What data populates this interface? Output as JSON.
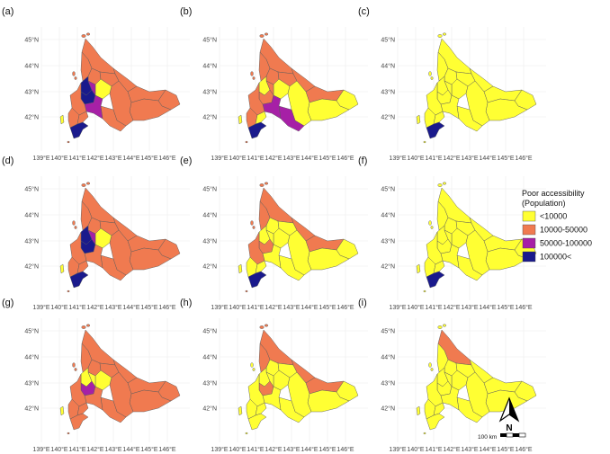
{
  "map": {
    "x_ticks": [
      "139°E",
      "140°E",
      "141°E",
      "142°E",
      "143°E",
      "144°E",
      "145°E",
      "146°E"
    ],
    "y_ticks": [
      "45°N",
      "44°N",
      "43°N",
      "42°N"
    ],
    "panels": [
      {
        "label": "(a)",
        "fills": {
          "north": "c2",
          "rumoi": "c2",
          "sorachi_n": "c2",
          "kamikawa_n": "c2",
          "kamikawa_c": "c1",
          "okhotsk_w": "c2",
          "okhotsk_e": "c2",
          "kushiro": "c2",
          "nemuro": "c2",
          "tokachi": "c2",
          "hidaka": "c2",
          "ishikari": "c4",
          "sapporo": "c4",
          "sorachi_s": "c3",
          "iburi": "c3",
          "shiribeshi": "c2",
          "hiyama": "c2",
          "hakodate": "c4",
          "oshima_n": "c2",
          "okushiri": "c1"
        }
      },
      {
        "label": "(b)",
        "fills": {
          "north": "c2",
          "rumoi": "c2",
          "sorachi_n": "c2",
          "kamikawa_n": "c2",
          "kamikawa_c": "c1",
          "okhotsk_w": "c2",
          "okhotsk_e": "c2",
          "kushiro": "c1",
          "nemuro": "c1",
          "tokachi": "c1",
          "hidaka": "c3",
          "ishikari": "c1",
          "sapporo": "c2",
          "sorachi_s": "c2",
          "iburi": "c3",
          "shiribeshi": "c2",
          "hiyama": "c2",
          "hakodate": "c4",
          "oshima_n": "c1",
          "okushiri": "c1"
        }
      },
      {
        "label": "(c)",
        "fills": {
          "north": "c1",
          "rumoi": "c1",
          "sorachi_n": "c1",
          "kamikawa_n": "c1",
          "kamikawa_c": "c1",
          "okhotsk_w": "c1",
          "okhotsk_e": "c1",
          "kushiro": "c1",
          "nemuro": "c1",
          "tokachi": "c1",
          "hidaka": "c1",
          "ishikari": "c1",
          "sapporo": "c1",
          "sorachi_s": "c1",
          "iburi": "c1",
          "shiribeshi": "c1",
          "hiyama": "c1",
          "hakodate": "c4",
          "oshima_n": "c1",
          "okushiri": "c1"
        }
      },
      {
        "label": "(d)",
        "fills": {
          "north": "c2",
          "rumoi": "c2",
          "sorachi_n": "c2",
          "kamikawa_n": "c2",
          "kamikawa_c": "c1",
          "okhotsk_w": "c2",
          "okhotsk_e": "c2",
          "kushiro": "c2",
          "nemuro": "c2",
          "tokachi": "c2",
          "hidaka": "c2",
          "ishikari": "c4",
          "sapporo": "c4",
          "sorachi_s": "c3",
          "iburi": "c2",
          "shiribeshi": "c2",
          "hiyama": "c2",
          "hakodate": "c4",
          "oshima_n": "c2",
          "okushiri": "c1"
        }
      },
      {
        "label": "(e)",
        "fills": {
          "north": "c2",
          "rumoi": "c2",
          "sorachi_n": "c1",
          "kamikawa_n": "c1",
          "kamikawa_c": "c1",
          "okhotsk_w": "c2",
          "okhotsk_e": "c2",
          "kushiro": "c1",
          "nemuro": "c1",
          "tokachi": "c1",
          "hidaka": "c1",
          "ishikari": "c1",
          "sapporo": "c2",
          "sorachi_s": "c1",
          "iburi": "c1",
          "shiribeshi": "c2",
          "hiyama": "c1",
          "hakodate": "c4",
          "oshima_n": "c1",
          "okushiri": "c1"
        }
      },
      {
        "label": "(f)",
        "fills": {
          "north": "c1",
          "rumoi": "c1",
          "sorachi_n": "c1",
          "kamikawa_n": "c1",
          "kamikawa_c": "c1",
          "okhotsk_w": "c1",
          "okhotsk_e": "c1",
          "kushiro": "c1",
          "nemuro": "c1",
          "tokachi": "c1",
          "hidaka": "c1",
          "ishikari": "c1",
          "sapporo": "c1",
          "sorachi_s": "c1",
          "iburi": "c1",
          "shiribeshi": "c1",
          "hiyama": "c1",
          "hakodate": "c4",
          "oshima_n": "c1",
          "okushiri": "c1"
        }
      },
      {
        "label": "(g)",
        "fills": {
          "north": "c2",
          "rumoi": "c2",
          "sorachi_n": "c2",
          "kamikawa_n": "c2",
          "kamikawa_c": "c1",
          "okhotsk_w": "c2",
          "okhotsk_e": "c2",
          "kushiro": "c2",
          "nemuro": "c2",
          "tokachi": "c2",
          "hidaka": "c2",
          "ishikari": "c1",
          "sapporo": "c3",
          "sorachi_s": "c1",
          "iburi": "c2",
          "shiribeshi": "c2",
          "hiyama": "c2",
          "hakodate": "c2",
          "oshima_n": "c2",
          "okushiri": "c1"
        }
      },
      {
        "label": "(h)",
        "fills": {
          "north": "c2",
          "rumoi": "c2",
          "sorachi_n": "c1",
          "kamikawa_n": "c1",
          "kamikawa_c": "c1",
          "okhotsk_w": "c2",
          "okhotsk_e": "c2",
          "kushiro": "c1",
          "nemuro": "c1",
          "tokachi": "c1",
          "hidaka": "c1",
          "ishikari": "c1",
          "sapporo": "c2",
          "sorachi_s": "c1",
          "iburi": "c1",
          "shiribeshi": "c1",
          "hiyama": "c1",
          "hakodate": "c1",
          "oshima_n": "c1",
          "okushiri": "c1"
        }
      },
      {
        "label": "(i)",
        "fills": {
          "north": "c2",
          "rumoi": "c1",
          "sorachi_n": "c1",
          "kamikawa_n": "c1",
          "kamikawa_c": "c1",
          "okhotsk_w": "c1",
          "okhotsk_e": "c1",
          "kushiro": "c1",
          "nemuro": "c1",
          "tokachi": "c1",
          "hidaka": "c1",
          "ishikari": "c1",
          "sapporo": "c1",
          "sorachi_s": "c1",
          "iburi": "c1",
          "shiribeshi": "c1",
          "hiyama": "c1",
          "hakodate": "c1",
          "oshima_n": "c1",
          "okushiri": "c1"
        }
      }
    ]
  },
  "legend": {
    "title_line1": "Poor accessibility",
    "title_line2": "(Population)",
    "items": [
      {
        "key": "c1",
        "label": "<10000",
        "color": "#ffff33"
      },
      {
        "key": "c2",
        "label": "10000-50000",
        "color": "#f07a50"
      },
      {
        "key": "c3",
        "label": "50000-100000",
        "color": "#a620a6"
      },
      {
        "key": "c4",
        "label": "100000<",
        "color": "#1a1a8c"
      }
    ]
  },
  "north_arrow": {
    "letter": "N"
  },
  "scale_bar": {
    "label": "100 km"
  }
}
